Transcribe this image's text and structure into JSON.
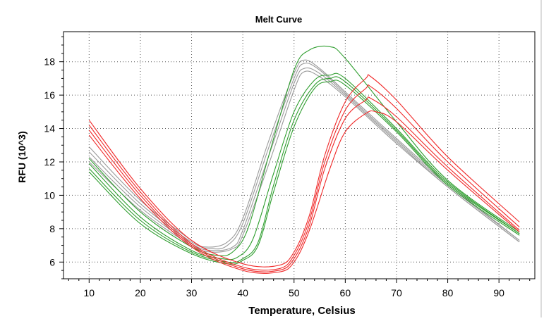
{
  "chart_data": {
    "type": "line",
    "title": "Melt Curve",
    "xlabel": "Temperature, Celsius",
    "ylabel": "RFU (10^3)",
    "xlim": [
      5,
      97
    ],
    "ylim": [
      5.0,
      19.8
    ],
    "x_ticks": [
      10,
      20,
      30,
      40,
      50,
      60,
      70,
      80,
      90
    ],
    "y_ticks": [
      6,
      8,
      10,
      12,
      14,
      16,
      18
    ],
    "grid": true,
    "colors": {
      "gray": "#9a9a9a",
      "green": "#2f9e2f",
      "red": "#f02828"
    },
    "series": [
      {
        "color": "gray",
        "x": [
          10,
          20,
          30,
          33,
          37,
          40,
          45,
          50,
          52,
          55,
          60,
          70,
          80,
          94
        ],
        "y": [
          12.9,
          9.7,
          7.3,
          6.9,
          7.2,
          8.6,
          13.2,
          17.3,
          18.1,
          17.6,
          16.2,
          13.4,
          10.7,
          7.3
        ]
      },
      {
        "color": "gray",
        "x": [
          10,
          20,
          30,
          34,
          37,
          40,
          45,
          50,
          52,
          55,
          60,
          70,
          80,
          94
        ],
        "y": [
          12.6,
          9.5,
          7.2,
          6.8,
          7.0,
          8.3,
          12.8,
          17.0,
          17.9,
          17.5,
          16.1,
          13.3,
          10.6,
          7.3
        ]
      },
      {
        "color": "gray",
        "x": [
          10,
          20,
          30,
          34,
          38,
          40,
          45,
          50,
          52,
          55,
          60,
          70,
          80,
          94
        ],
        "y": [
          12.3,
          9.3,
          7.1,
          6.7,
          6.9,
          7.9,
          12.3,
          16.7,
          17.6,
          17.3,
          16.0,
          13.2,
          10.5,
          7.2
        ]
      },
      {
        "color": "gray",
        "x": [
          10,
          20,
          30,
          34,
          38,
          40,
          45,
          50,
          52,
          55,
          60,
          70,
          80,
          94
        ],
        "y": [
          12.0,
          9.1,
          7.0,
          6.6,
          6.8,
          7.6,
          11.8,
          16.3,
          17.4,
          17.1,
          15.9,
          13.1,
          10.5,
          7.2
        ]
      },
      {
        "color": "green",
        "x": [
          10,
          20,
          30,
          35,
          38,
          41,
          45,
          50,
          53,
          57,
          60,
          70,
          80,
          94
        ],
        "y": [
          12.2,
          9.0,
          6.9,
          6.4,
          6.6,
          8.0,
          12.3,
          17.5,
          18.7,
          18.9,
          18.2,
          14.4,
          10.9,
          7.8
        ]
      },
      {
        "color": "green",
        "x": [
          10,
          20,
          30,
          36,
          39,
          42,
          46,
          50,
          54,
          57,
          60,
          70,
          80,
          94
        ],
        "y": [
          11.9,
          8.7,
          6.7,
          6.2,
          6.3,
          7.4,
          11.3,
          15.0,
          16.9,
          17.2,
          17.0,
          14.0,
          10.8,
          7.7
        ]
      },
      {
        "color": "green",
        "x": [
          10,
          20,
          30,
          37,
          40,
          43,
          46,
          50,
          54,
          57,
          60,
          70,
          80,
          94
        ],
        "y": [
          11.6,
          8.5,
          6.6,
          6.0,
          6.2,
          7.2,
          10.6,
          14.5,
          16.6,
          17.0,
          16.8,
          13.9,
          10.7,
          7.7
        ]
      },
      {
        "color": "green",
        "x": [
          10,
          20,
          30,
          37,
          40,
          43,
          46,
          50,
          54,
          57,
          60,
          70,
          80,
          94
        ],
        "y": [
          11.4,
          8.3,
          6.5,
          5.9,
          6.1,
          7.0,
          10.2,
          14.1,
          16.4,
          16.8,
          16.6,
          13.8,
          10.6,
          7.6
        ]
      },
      {
        "color": "red",
        "x": [
          10,
          20,
          30,
          40,
          47,
          50,
          53,
          56,
          60,
          64,
          65,
          70,
          80,
          94
        ],
        "y": [
          14.5,
          10.4,
          7.3,
          5.9,
          5.8,
          6.6,
          8.8,
          12.4,
          15.6,
          17.0,
          17.1,
          15.7,
          12.3,
          8.4
        ]
      },
      {
        "color": "red",
        "x": [
          10,
          20,
          30,
          40,
          47,
          50,
          53,
          56,
          60,
          64,
          65,
          70,
          80,
          94
        ],
        "y": [
          14.2,
          10.2,
          7.1,
          5.7,
          5.6,
          6.4,
          8.5,
          12.0,
          15.1,
          16.4,
          16.5,
          15.2,
          12.0,
          8.1
        ]
      },
      {
        "color": "red",
        "x": [
          10,
          20,
          30,
          40,
          47,
          50,
          53,
          56,
          60,
          64,
          65,
          70,
          80,
          94
        ],
        "y": [
          13.9,
          10.0,
          7.0,
          5.6,
          5.5,
          6.2,
          8.2,
          11.6,
          14.6,
          15.7,
          15.8,
          14.7,
          11.7,
          7.9
        ]
      },
      {
        "color": "red",
        "x": [
          10,
          20,
          30,
          40,
          47,
          50,
          53,
          57,
          60,
          64,
          66,
          70,
          80,
          94
        ],
        "y": [
          13.6,
          9.8,
          6.9,
          5.5,
          5.4,
          6.0,
          7.9,
          11.6,
          13.8,
          14.9,
          15.0,
          14.4,
          11.5,
          7.8
        ]
      }
    ]
  }
}
